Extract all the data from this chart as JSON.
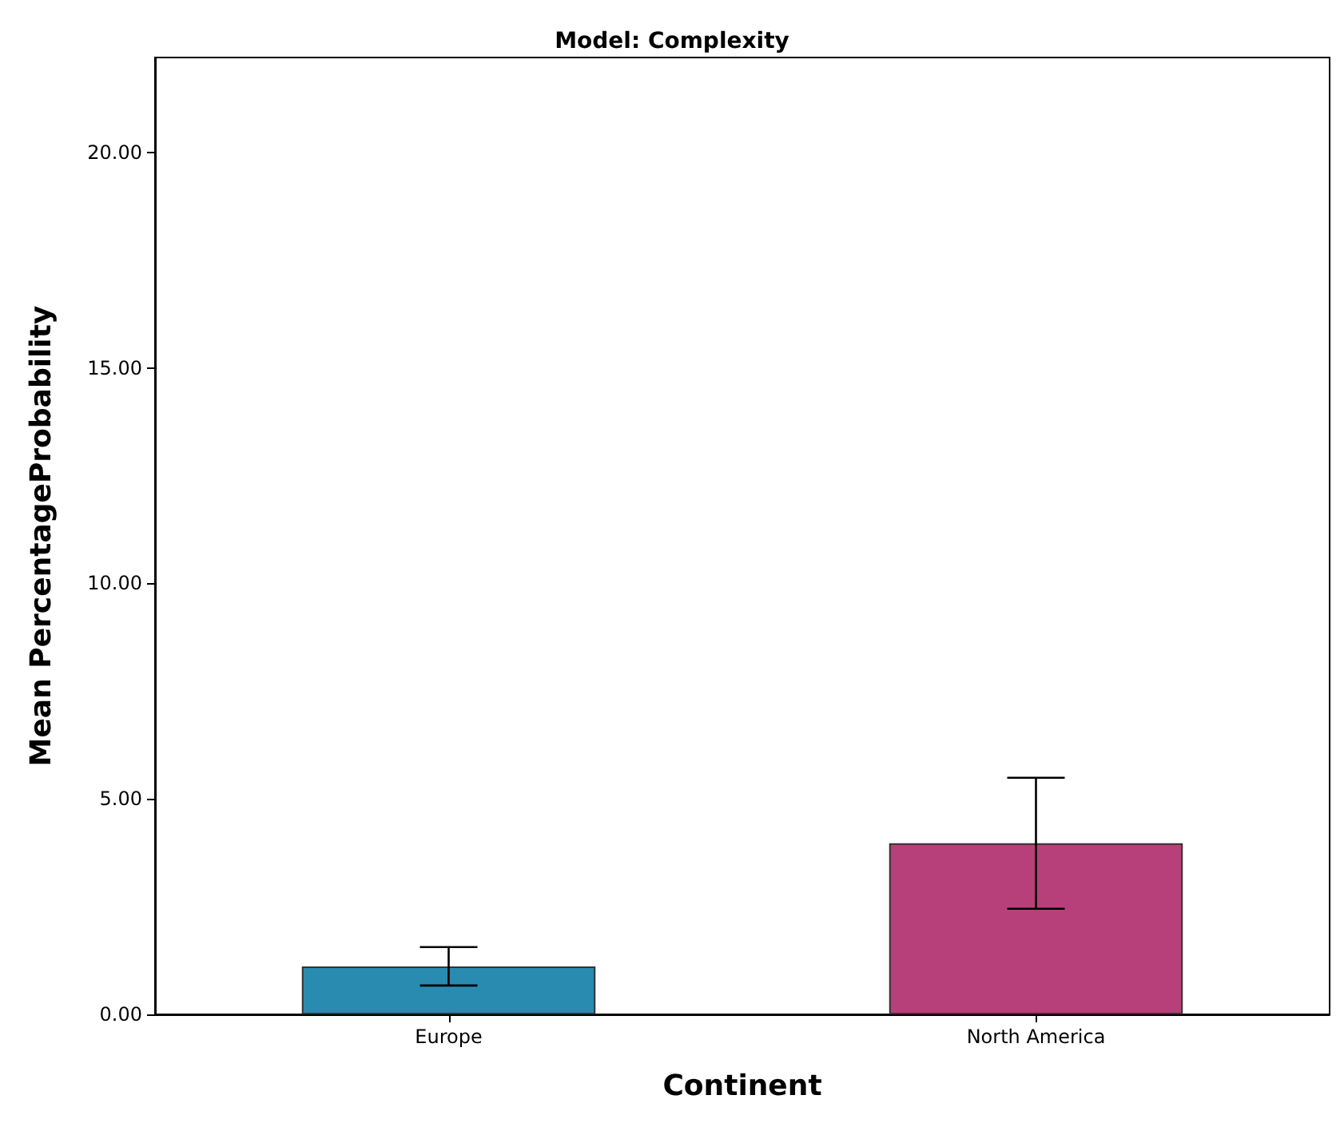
{
  "chart_data": {
    "type": "bar",
    "title": "Model: Complexity",
    "xlabel": "Continent",
    "ylabel": "Mean PercentageProbability",
    "categories": [
      "Europe",
      "North America"
    ],
    "values": [
      1.11,
      3.97
    ],
    "colors": [
      "#2a8bb0",
      "#b8407a"
    ],
    "errors": [
      [
        0.67,
        1.56
      ],
      [
        2.45,
        5.49
      ]
    ],
    "ylim": [
      0,
      22.2
    ],
    "yticks": [
      {
        "value": 0,
        "label": "0.00"
      },
      {
        "value": 5,
        "label": "5.00"
      },
      {
        "value": 10,
        "label": "10.00"
      },
      {
        "value": 15,
        "label": "15.00"
      },
      {
        "value": 20,
        "label": "20.00"
      }
    ],
    "grid": false
  }
}
